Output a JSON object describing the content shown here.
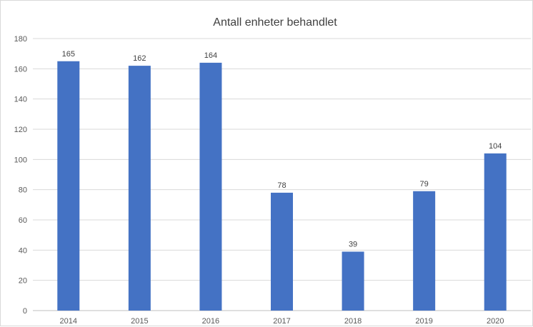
{
  "chart_data": {
    "type": "bar",
    "title": "Antall enheter behandlet",
    "xlabel": "",
    "ylabel": "",
    "categories": [
      "2014",
      "2015",
      "2016",
      "2017",
      "2018",
      "2019",
      "2020"
    ],
    "values": [
      165,
      162,
      164,
      78,
      39,
      79,
      104
    ],
    "ylim": [
      0,
      180
    ],
    "yticks": [
      0,
      20,
      40,
      60,
      80,
      100,
      120,
      140,
      160,
      180
    ],
    "grid": true,
    "legend": "none",
    "data_labels": true,
    "bar_color": "#4472C4"
  }
}
